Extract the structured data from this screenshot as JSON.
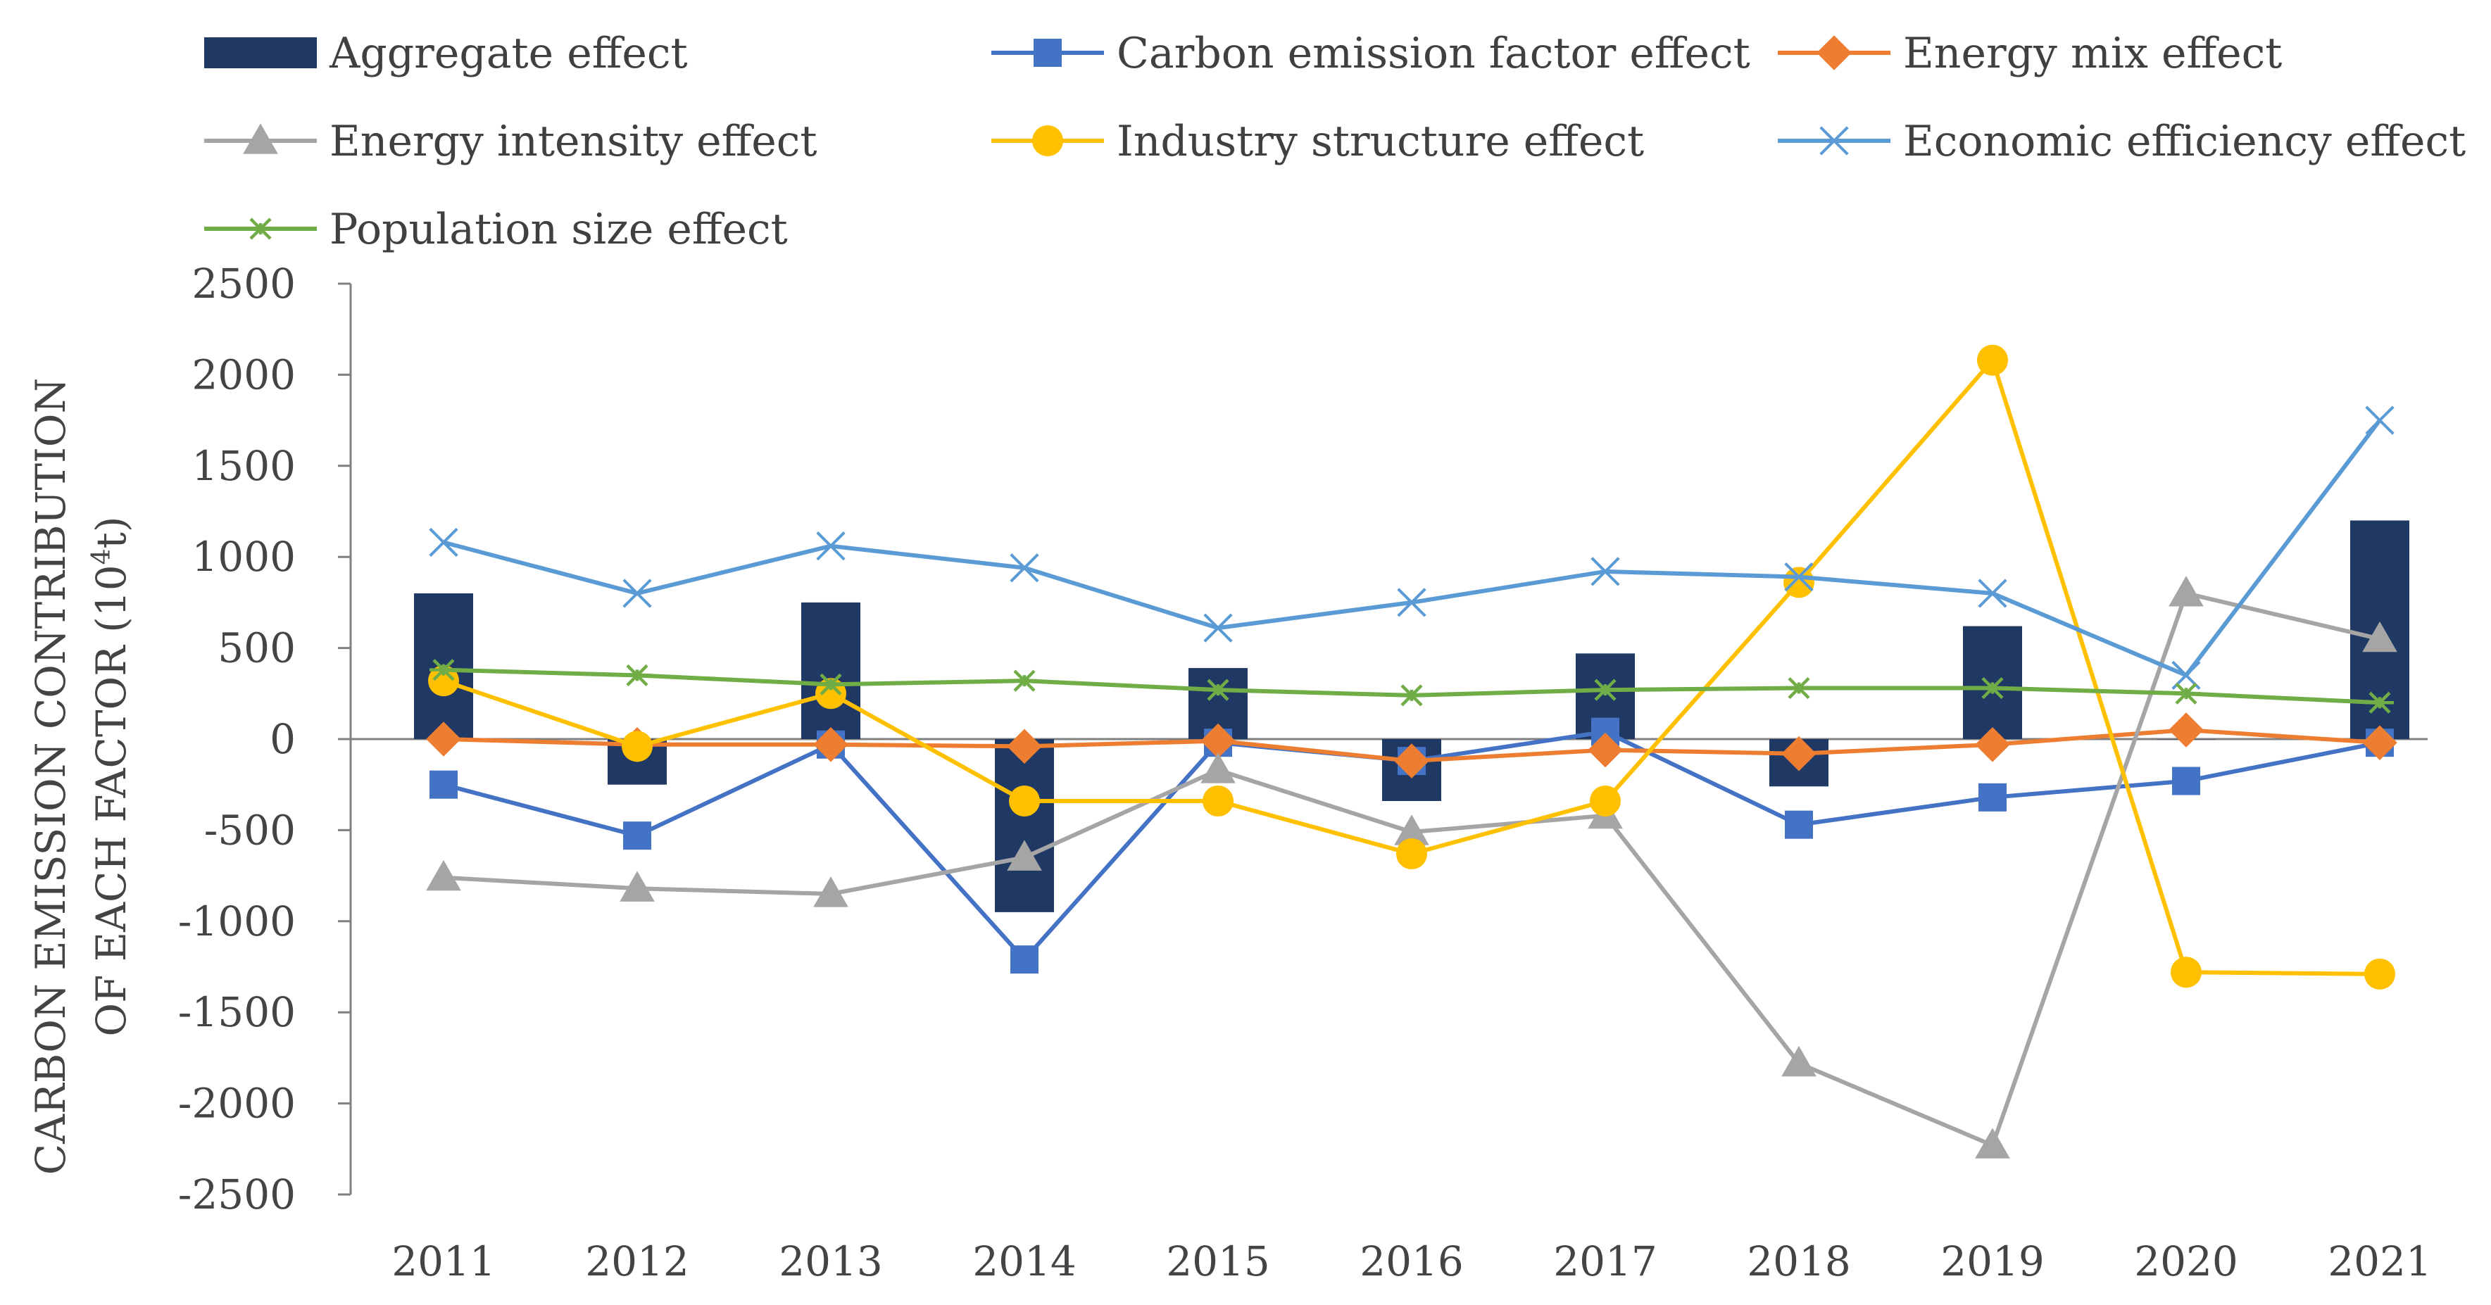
{
  "chart_data": {
    "type": "bar+line",
    "title": "",
    "ylabel": [
      "CARBON EMISSION  CONTRIBUTION",
      "OF  EACH FACTOR ("
    ],
    "ylabel_unit_base": "10",
    "ylabel_unit_sup": "4",
    "ylabel_unit_tail": "t)",
    "xlabel": "",
    "ylim": [
      -2500,
      2500
    ],
    "yticks": [
      2500,
      2000,
      1500,
      1000,
      500,
      0,
      -500,
      -1000,
      -1500,
      -2000,
      -2500
    ],
    "categories": [
      "2011",
      "2012",
      "2013",
      "2014",
      "2015",
      "2016",
      "2017",
      "2018",
      "2019",
      "2020",
      "2021"
    ],
    "bar_series": {
      "name": "Aggregate effect",
      "color": "#1f3864",
      "values": [
        800,
        -250,
        750,
        -950,
        390,
        -340,
        470,
        -260,
        620,
        0,
        1200
      ]
    },
    "series": [
      {
        "name": "Carbon emission factor effect",
        "color": "#4472c4",
        "marker": "square",
        "values": [
          -250,
          -530,
          -30,
          -1210,
          -20,
          -120,
          40,
          -470,
          -320,
          -230,
          -20
        ]
      },
      {
        "name": "Energy mix effect",
        "color": "#ed7d31",
        "marker": "diamond",
        "values": [
          0,
          -30,
          -30,
          -40,
          -10,
          -120,
          -60,
          -80,
          -30,
          50,
          -20
        ]
      },
      {
        "name": "Energy intensity effect",
        "color": "#a5a5a5",
        "marker": "triangle",
        "values": [
          -760,
          -820,
          -850,
          -650,
          -170,
          -510,
          -420,
          -1780,
          -2230,
          800,
          550
        ]
      },
      {
        "name": "Industry structure effect",
        "color": "#ffc000",
        "marker": "circle",
        "values": [
          320,
          -40,
          250,
          -340,
          -340,
          -630,
          -340,
          860,
          2080,
          -1280,
          -1290
        ]
      },
      {
        "name": "Economic efficiency effect",
        "color": "#5b9bd5",
        "marker": "x",
        "values": [
          1080,
          800,
          1060,
          940,
          610,
          750,
          920,
          890,
          800,
          350,
          1750
        ]
      },
      {
        "name": "Population size effect",
        "color": "#70ad47",
        "marker": "star",
        "values": [
          380,
          350,
          300,
          320,
          270,
          240,
          270,
          280,
          280,
          250,
          200
        ]
      }
    ],
    "legend": {
      "position": "top"
    }
  }
}
